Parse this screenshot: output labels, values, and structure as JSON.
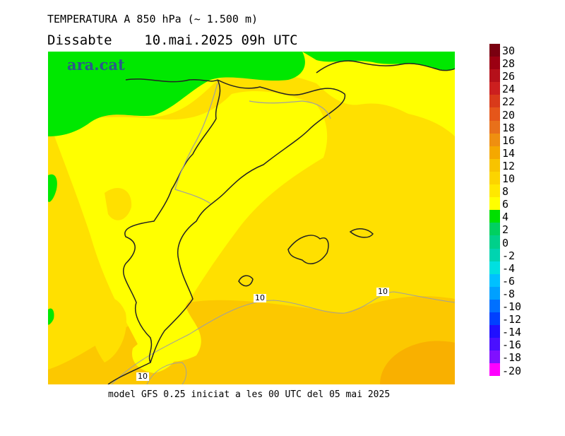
{
  "header": {
    "title": "TEMPERATURA A 850 hPa (~ 1.500 m)",
    "subtitle": "Dissabte    10.mai.2025 09h UTC"
  },
  "footer": {
    "text": "model GFS 0.25 iniciat a les 00 UTC del 05 mai 2025"
  },
  "logo": {
    "text": "ara.cat"
  },
  "legend": {
    "labels": [
      "30",
      "28",
      "26",
      "24",
      "22",
      "20",
      "18",
      "16",
      "14",
      "12",
      "10",
      "8",
      "6",
      "4",
      "2",
      "0",
      "-2",
      "-4",
      "-6",
      "-8",
      "-10",
      "-12",
      "-14",
      "-16",
      "-18",
      "-20"
    ],
    "colors": [
      "#7a0010",
      "#9b0012",
      "#b5101a",
      "#cc1f1f",
      "#d93a1a",
      "#e5561a",
      "#e8701a",
      "#ef8f10",
      "#f5a800",
      "#f8c300",
      "#fcd400",
      "#ffe800",
      "#ffff00",
      "#00e000",
      "#00d060",
      "#00d08a",
      "#00d4b0",
      "#00e0e0",
      "#00c0ff",
      "#00a0ff",
      "#0070ff",
      "#0040ff",
      "#2010ff",
      "#4a10ff",
      "#8010ff",
      "#ff00ff"
    ]
  },
  "map": {
    "contour_labels": [
      "10",
      "10",
      "10"
    ],
    "colors": {
      "green": "#00e800",
      "yellow": "#ffff00",
      "light_orange": "#ffe000",
      "orange": "#fcc800",
      "dark_orange": "#f9b000",
      "contour": "#a0a0a0",
      "coast": "#222222"
    }
  }
}
